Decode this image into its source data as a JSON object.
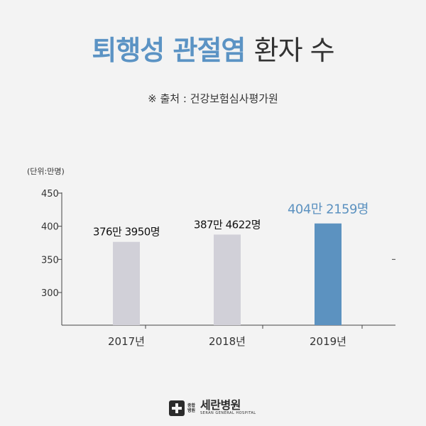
{
  "header": {
    "title_highlight": "퇴행성 관절염",
    "title_rest": "환자 수",
    "source": "※ 출처 : 건강보험심사평가원"
  },
  "chart_data": {
    "type": "bar",
    "unit_label": "(단위:만명)",
    "categories": [
      "2017년",
      "2018년",
      "2019년"
    ],
    "values": [
      376.395,
      387.4622,
      404.2159
    ],
    "data_labels": [
      "376만 3950명",
      "387만 4622명",
      "404만 2159명"
    ],
    "y_ticks": [
      300,
      350,
      400,
      450
    ],
    "ylim": [
      255,
      450
    ],
    "grid": false,
    "colors": [
      "#d1d0d8",
      "#d1d0d8",
      "#5c92c0"
    ],
    "label_colors": [
      "#111111",
      "#111111",
      "#5c92c0"
    ]
  },
  "footer": {
    "logo_sub": "종합 병원",
    "logo_name": "세란병원",
    "logo_en": "SERAN GENERAL HOSPITAL"
  }
}
